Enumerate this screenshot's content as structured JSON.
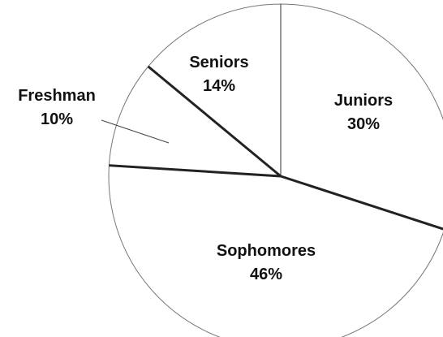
{
  "chart_data": {
    "type": "pie",
    "title": "",
    "slices": [
      {
        "label": "Juniors",
        "value": 30,
        "value_text": "30%"
      },
      {
        "label": "Sophomores",
        "value": 46,
        "value_text": "46%"
      },
      {
        "label": "Freshman",
        "value": 10,
        "value_text": "10%"
      },
      {
        "label": "Seniors",
        "value": 14,
        "value_text": "14%"
      }
    ],
    "start_angle_deg": 0,
    "direction": "clockwise-from-top",
    "colors": {
      "fill": "#ffffff",
      "stroke": "#222222"
    }
  }
}
